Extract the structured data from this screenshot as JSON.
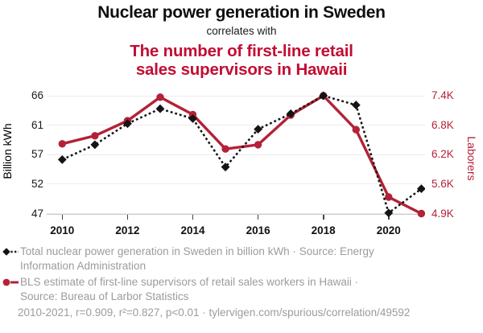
{
  "header": {
    "title": "Nuclear power generation in Sweden",
    "connector": "correlates with",
    "subtitle_lines": [
      "The number of first-line retail",
      "sales supervisors in Hawaii"
    ]
  },
  "axes": {
    "left": {
      "title": "Billion kWh",
      "ticks": [
        "66",
        "61",
        "57",
        "52",
        "47"
      ]
    },
    "right": {
      "title": "Laborers",
      "ticks": [
        "7.4K",
        "6.8K",
        "6.2K",
        "5.6K",
        "4.9K"
      ]
    },
    "x": {
      "ticks": [
        "2010",
        "2012",
        "2014",
        "2016",
        "2018",
        "2020"
      ]
    }
  },
  "chart_data": {
    "type": "line",
    "x": [
      2010,
      2011,
      2012,
      2013,
      2014,
      2015,
      2016,
      2017,
      2018,
      2019,
      2020,
      2021
    ],
    "x_range": [
      2010,
      2021
    ],
    "left_axis_range": [
      47,
      66
    ],
    "right_axis_range": [
      4900,
      7400
    ],
    "grid": "horizontal",
    "legend_position": "bottom",
    "series": [
      {
        "id": "sweden-nuclear",
        "name": "Total nuclear power generation in Sweden in billion kWh",
        "axis": "left",
        "units": "billion kWh",
        "color": "#141414",
        "style": "dashed-diamond",
        "values": [
          55.7,
          58.1,
          61.5,
          63.9,
          62.3,
          54.5,
          60.6,
          63.1,
          66.0,
          64.5,
          47.1,
          51.0
        ]
      },
      {
        "id": "hawaii-supervisors",
        "name": "BLS estimate of first-line supervisors of retail sales workers in Hawaii",
        "axis": "right",
        "units": "laborers",
        "color": "#b32237",
        "style": "solid-circle",
        "values": [
          6380,
          6550,
          6870,
          7370,
          7000,
          6270,
          6360,
          6990,
          7400,
          6680,
          5250,
          4900
        ]
      }
    ]
  },
  "legend": {
    "items": [
      {
        "marker": "black-diamond-dashed",
        "lines": [
          "Total nuclear power generation in Sweden in billion kWh · Source: Energy",
          "Information Administration"
        ]
      },
      {
        "marker": "red-circle-solid",
        "lines": [
          "BLS estimate of first-line supervisors of retail sales workers in Hawaii ·",
          "Source: Bureau of Larbor Statistics"
        ]
      }
    ]
  },
  "footer": {
    "stats": "2010-2021, r=0.909, r²=0.827, p<0.01 · tylervigen.com/spurious/correlation/49592"
  },
  "colors": {
    "black_series": "#141414",
    "red_series": "#b32237",
    "red_title": "#c20d33",
    "legend_gray": "#9c9c9c"
  }
}
